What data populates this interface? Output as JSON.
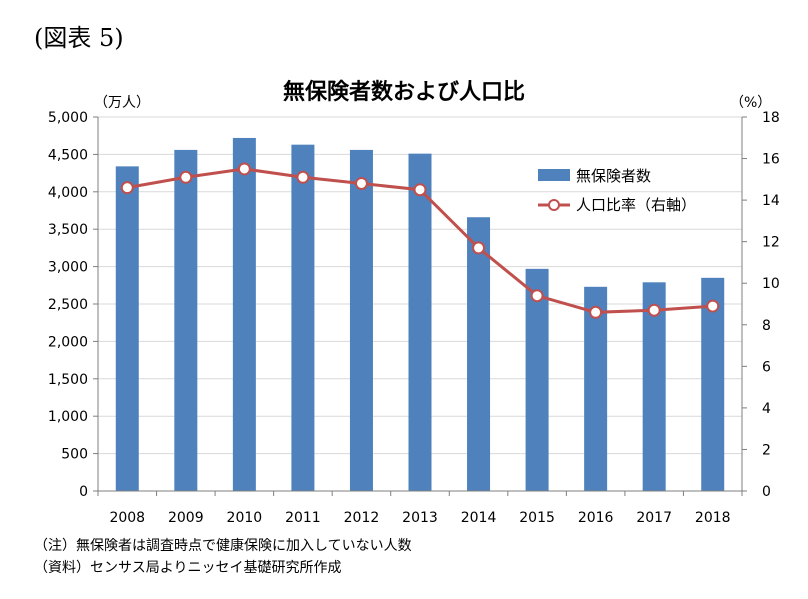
{
  "figure_label": "(図表 5)",
  "chart_data": {
    "type": "bar",
    "title": "無保険者数および人口比",
    "left_unit": "（万人）",
    "right_unit": "（%）",
    "categories": [
      "2008",
      "2009",
      "2010",
      "2011",
      "2012",
      "2013",
      "2014",
      "2015",
      "2016",
      "2017",
      "2018"
    ],
    "y_left": {
      "range": [
        0,
        5000
      ],
      "ticks": [
        "0",
        "500",
        "1,000",
        "1,500",
        "2,000",
        "2,500",
        "3,000",
        "3,500",
        "4,000",
        "4,500",
        "5,000"
      ]
    },
    "y_right": {
      "range": [
        0,
        18
      ],
      "ticks": [
        "0",
        "2",
        "4",
        "6",
        "8",
        "10",
        "12",
        "14",
        "16",
        "18"
      ]
    },
    "series": [
      {
        "name": "無保険者数",
        "type": "bar",
        "axis": "left",
        "color": "#4f81bd",
        "values": [
          4340,
          4560,
          4720,
          4630,
          4560,
          4510,
          3660,
          2970,
          2730,
          2790,
          2850
        ]
      },
      {
        "name": "人口比率（右軸）",
        "type": "line",
        "axis": "right",
        "color": "#c0504d",
        "values": [
          14.6,
          15.1,
          15.5,
          15.1,
          14.8,
          14.5,
          11.7,
          9.4,
          8.6,
          8.7,
          8.9
        ]
      }
    ],
    "grid": true,
    "legend_position": "top-right"
  },
  "notes": [
    "（注）無保険者は調査時点で健康保険に加入していない人数",
    "（資料）センサス局よりニッセイ基礎研究所作成"
  ]
}
